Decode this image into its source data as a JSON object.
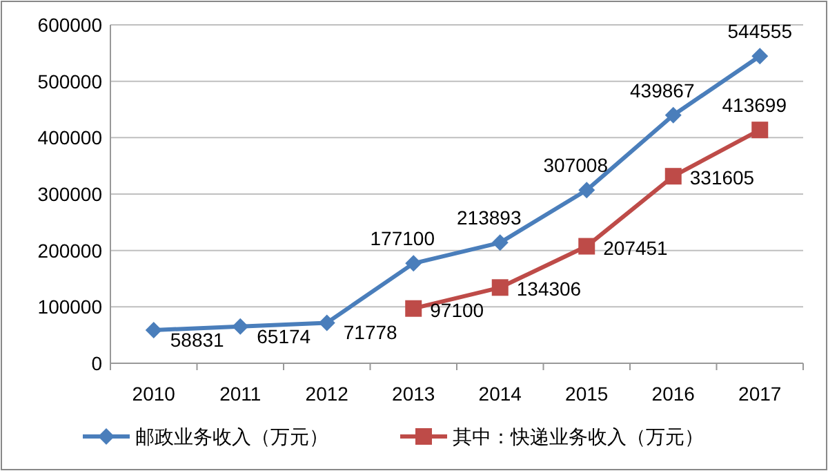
{
  "chart_data": {
    "type": "line",
    "categories": [
      "2010",
      "2011",
      "2012",
      "2013",
      "2014",
      "2015",
      "2016",
      "2017"
    ],
    "series": [
      {
        "name": "邮政业务收入（万元）",
        "color": "#4a7ebb",
        "marker": "diamond",
        "values": [
          58831,
          65174,
          71778,
          177100,
          213893,
          307008,
          439867,
          544555
        ]
      },
      {
        "name": "其中：快递业务收入（万元）",
        "color": "#be4b48",
        "marker": "square",
        "values": [
          null,
          null,
          null,
          97100,
          134306,
          207451,
          331605,
          413699
        ]
      }
    ],
    "ylim": [
      0,
      600000
    ],
    "yticks": [
      0,
      100000,
      200000,
      300000,
      400000,
      500000,
      600000
    ],
    "grid": "y",
    "legend": "bottom",
    "data_labels": true,
    "line_style": "solid"
  }
}
